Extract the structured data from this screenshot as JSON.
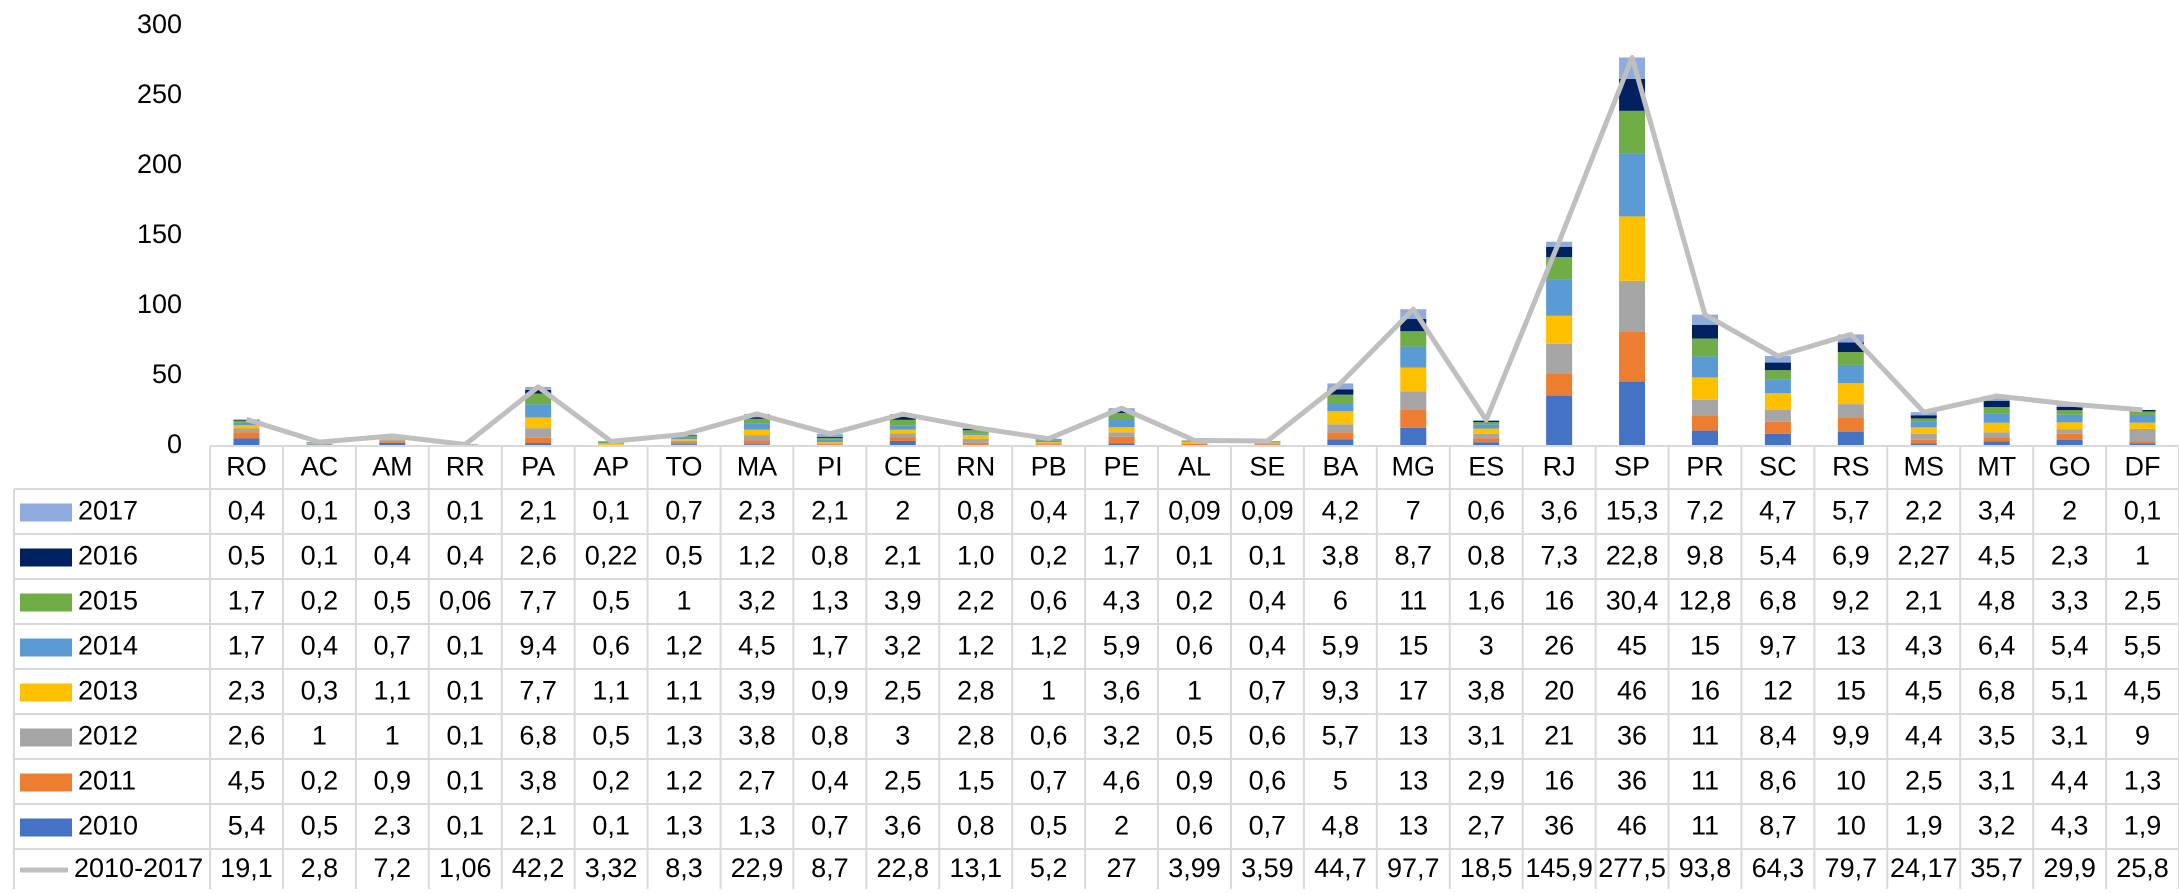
{
  "chart_data": {
    "type": "bar",
    "stacked": true,
    "categories": [
      "RO",
      "AC",
      "AM",
      "RR",
      "PA",
      "AP",
      "TO",
      "MA",
      "PI",
      "CE",
      "RN",
      "PB",
      "PE",
      "AL",
      "SE",
      "BA",
      "MG",
      "ES",
      "RJ",
      "SP",
      "PR",
      "SC",
      "RS",
      "MS",
      "MT",
      "GO",
      "DF"
    ],
    "ylim": [
      0,
      300
    ],
    "yticks": [
      "0",
      "50",
      "100",
      "150",
      "200",
      "250",
      "300"
    ],
    "grid": false,
    "legend": "data-table",
    "series": [
      {
        "name": "2017",
        "color": "#8faadc",
        "values": [
          0.4,
          0.1,
          0.3,
          0.1,
          2.1,
          0.1,
          0.7,
          2.3,
          2.1,
          2,
          0.8,
          0.4,
          1.7,
          0.09,
          0.09,
          4.2,
          7,
          0.6,
          3.6,
          15.3,
          7.2,
          4.7,
          5.7,
          2.2,
          3.4,
          2,
          0.1
        ],
        "labels": [
          "0,4",
          "0,1",
          "0,3",
          "0,1",
          "2,1",
          "0,1",
          "0,7",
          "2,3",
          "2,1",
          "2",
          "0,8",
          "0,4",
          "1,7",
          "0,09",
          "0,09",
          "4,2",
          "7",
          "0,6",
          "3,6",
          "15,3",
          "7,2",
          "4,7",
          "5,7",
          "2,2",
          "3,4",
          "2",
          "0,1"
        ]
      },
      {
        "name": "2016",
        "color": "#002060",
        "values": [
          0.5,
          0.1,
          0.4,
          0.4,
          2.6,
          0.22,
          0.5,
          1.2,
          0.8,
          2.1,
          1.0,
          0.2,
          1.7,
          0.1,
          0.1,
          3.8,
          8.7,
          0.8,
          7.3,
          22.8,
          9.8,
          5.4,
          6.9,
          2.27,
          4.5,
          2.3,
          1
        ],
        "labels": [
          "0,5",
          "0,1",
          "0,4",
          "0,4",
          "2,6",
          "0,22",
          "0,5",
          "1,2",
          "0,8",
          "2,1",
          "1,0",
          "0,2",
          "1,7",
          "0,1",
          "0,1",
          "3,8",
          "8,7",
          "0,8",
          "7,3",
          "22,8",
          "9,8",
          "5,4",
          "6,9",
          "2,27",
          "4,5",
          "2,3",
          "1"
        ]
      },
      {
        "name": "2015",
        "color": "#70ad47",
        "values": [
          1.7,
          0.2,
          0.5,
          0.06,
          7.7,
          0.5,
          1,
          3.2,
          1.3,
          3.9,
          2.2,
          0.6,
          4.3,
          0.2,
          0.4,
          6,
          11,
          1.6,
          16,
          30.4,
          12.8,
          6.8,
          9.2,
          2.1,
          4.8,
          3.3,
          2.5
        ],
        "labels": [
          "1,7",
          "0,2",
          "0,5",
          "0,06",
          "7,7",
          "0,5",
          "1",
          "3,2",
          "1,3",
          "3,9",
          "2,2",
          "0,6",
          "4,3",
          "0,2",
          "0,4",
          "6",
          "11",
          "1,6",
          "16",
          "30,4",
          "12,8",
          "6,8",
          "9,2",
          "2,1",
          "4,8",
          "3,3",
          "2,5"
        ]
      },
      {
        "name": "2014",
        "color": "#5b9bd5",
        "values": [
          1.7,
          0.4,
          0.7,
          0.1,
          9.4,
          0.6,
          1.2,
          4.5,
          1.7,
          3.2,
          1.2,
          1.2,
          5.9,
          0.6,
          0.4,
          5.9,
          15,
          3,
          26,
          45,
          15,
          9.7,
          13,
          4.3,
          6.4,
          5.4,
          5.5
        ],
        "labels": [
          "1,7",
          "0,4",
          "0,7",
          "0,1",
          "9,4",
          "0,6",
          "1,2",
          "4,5",
          "1,7",
          "3,2",
          "1,2",
          "1,2",
          "5,9",
          "0,6",
          "0,4",
          "5,9",
          "15",
          "3",
          "26",
          "45",
          "15",
          "9,7",
          "13",
          "4,3",
          "6,4",
          "5,4",
          "5,5"
        ]
      },
      {
        "name": "2013",
        "color": "#ffc000",
        "values": [
          2.3,
          0.3,
          1.1,
          0.1,
          7.7,
          1.1,
          1.1,
          3.9,
          0.9,
          2.5,
          2.8,
          1,
          3.6,
          1,
          0.7,
          9.3,
          17,
          3.8,
          20,
          46,
          16,
          12,
          15,
          4.5,
          6.8,
          5.1,
          4.5
        ],
        "labels": [
          "2,3",
          "0,3",
          "1,1",
          "0,1",
          "7,7",
          "1,1",
          "1,1",
          "3,9",
          "0,9",
          "2,5",
          "2,8",
          "1",
          "3,6",
          "1",
          "0,7",
          "9,3",
          "17",
          "3,8",
          "20",
          "46",
          "16",
          "12",
          "15",
          "4,5",
          "6,8",
          "5,1",
          "4,5"
        ]
      },
      {
        "name": "2012",
        "color": "#a5a5a5",
        "values": [
          2.6,
          1,
          1,
          0.1,
          6.8,
          0.5,
          1.3,
          3.8,
          0.8,
          3,
          2.8,
          0.6,
          3.2,
          0.5,
          0.6,
          5.7,
          13,
          3.1,
          21,
          36,
          11,
          8.4,
          9.9,
          4.4,
          3.5,
          3.1,
          9
        ],
        "labels": [
          "2,6",
          "1",
          "1",
          "0,1",
          "6,8",
          "0,5",
          "1,3",
          "3,8",
          "0,8",
          "3",
          "2,8",
          "0,6",
          "3,2",
          "0,5",
          "0,6",
          "5,7",
          "13",
          "3,1",
          "21",
          "36",
          "11",
          "8,4",
          "9,9",
          "4,4",
          "3,5",
          "3,1",
          "9"
        ]
      },
      {
        "name": "2011",
        "color": "#ed7d31",
        "values": [
          4.5,
          0.2,
          0.9,
          0.1,
          3.8,
          0.2,
          1.2,
          2.7,
          0.4,
          2.5,
          1.5,
          0.7,
          4.6,
          0.9,
          0.6,
          5,
          13,
          2.9,
          16,
          36,
          11,
          8.6,
          10,
          2.5,
          3.1,
          4.4,
          1.3
        ],
        "labels": [
          "4,5",
          "0,2",
          "0,9",
          "0,1",
          "3,8",
          "0,2",
          "1,2",
          "2,7",
          "0,4",
          "2,5",
          "1,5",
          "0,7",
          "4,6",
          "0,9",
          "0,6",
          "5",
          "13",
          "2,9",
          "16",
          "36",
          "11",
          "8,6",
          "10",
          "2,5",
          "3,1",
          "4,4",
          "1,3"
        ]
      },
      {
        "name": "2010",
        "color": "#4472c4",
        "values": [
          5.4,
          0.5,
          2.3,
          0.1,
          2.1,
          0.1,
          1.3,
          1.3,
          0.7,
          3.6,
          0.8,
          0.5,
          2,
          0.6,
          0.7,
          4.8,
          13,
          2.7,
          36,
          46,
          11,
          8.7,
          10,
          1.9,
          3.2,
          4.3,
          1.9
        ],
        "labels": [
          "5,4",
          "0,5",
          "2,3",
          "0,1",
          "2,1",
          "0,1",
          "1,3",
          "1,3",
          "0,7",
          "3,6",
          "0,8",
          "0,5",
          "2",
          "0,6",
          "0,7",
          "4,8",
          "13",
          "2,7",
          "36",
          "46",
          "11",
          "8,7",
          "10",
          "1,9",
          "3,2",
          "4,3",
          "1,9"
        ]
      }
    ],
    "line": {
      "name": "2010-2017",
      "color": "#bfbfbf",
      "values": [
        19.1,
        2.8,
        7.2,
        1.06,
        42.2,
        3.32,
        8.3,
        22.9,
        8.7,
        22.8,
        13.1,
        5.2,
        27,
        3.99,
        3.59,
        44.7,
        97.7,
        18.5,
        145.9,
        277.5,
        93.8,
        64.3,
        79.7,
        24.17,
        35.7,
        29.9,
        25.8
      ],
      "labels": [
        "19,1",
        "2,8",
        "7,2",
        "1,06",
        "42,2",
        "3,32",
        "8,3",
        "22,9",
        "8,7",
        "22,8",
        "13,1",
        "5,2",
        "27",
        "3,99",
        "3,59",
        "44,7",
        "97,7",
        "18,5",
        "145,9",
        "277,5",
        "93,8",
        "64,3",
        "79,7",
        "24,17",
        "35,7",
        "29,9",
        "25,8"
      ]
    }
  }
}
